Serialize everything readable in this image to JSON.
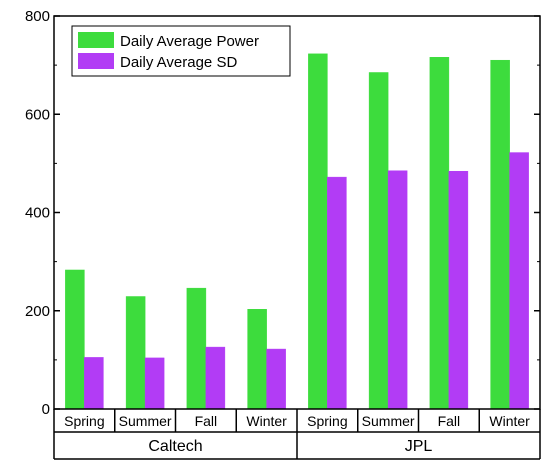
{
  "chart_data": {
    "type": "bar",
    "categories": [
      "Spring",
      "Summer",
      "Fall",
      "Winter",
      "Spring",
      "Summer",
      "Fall",
      "Winter"
    ],
    "groups": [
      {
        "label": "Caltech",
        "categories": [
          "Spring",
          "Summer",
          "Fall",
          "Winter"
        ]
      },
      {
        "label": "JPL",
        "categories": [
          "Spring",
          "Summer",
          "Fall",
          "Winter"
        ]
      }
    ],
    "series": [
      {
        "name": "Daily Average Power",
        "color": "#3ddc3d",
        "values": [
          283,
          229,
          246,
          203,
          723,
          685,
          716,
          710
        ]
      },
      {
        "name": "Daily Average SD",
        "color": "#b23cf5",
        "values": [
          105,
          104,
          126,
          122,
          472,
          485,
          484,
          522
        ]
      }
    ],
    "title": "",
    "xlabel": "",
    "ylabel": "",
    "ylim": [
      0,
      800
    ],
    "yticks": [
      0,
      200,
      400,
      600,
      800
    ],
    "grid": false,
    "legend_position": "top-left"
  }
}
